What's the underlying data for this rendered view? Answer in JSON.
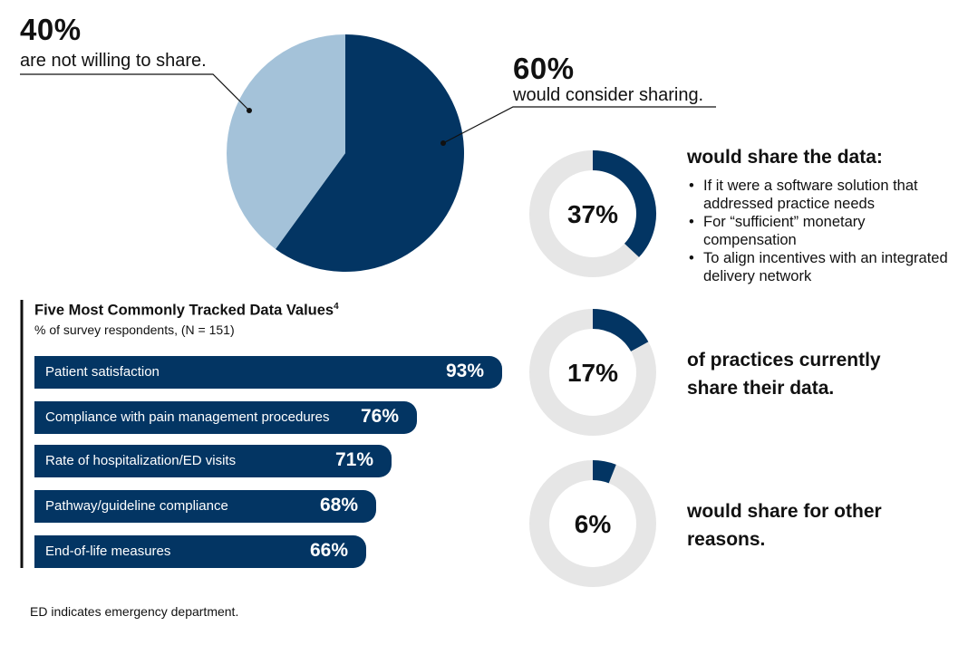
{
  "colors": {
    "navy": "#033563",
    "light_blue": "#a4c2d9",
    "ring_gray": "#e6e6e6"
  },
  "pie": {
    "left_pct": "40%",
    "left_caption": "are not willing to share.",
    "right_pct": "60%",
    "right_caption": "would consider sharing."
  },
  "donuts": [
    {
      "label": "37%",
      "heading": "would share the data:",
      "bullets": [
        "If it were a software solution that addressed practice needs",
        "For “sufficient” monetary compensation",
        "To align incentives with an integrated delivery network"
      ]
    },
    {
      "label": "17%",
      "heading_line1": "of practices currently",
      "heading_line2": "share their data."
    },
    {
      "label": "6%",
      "heading_line1": "would share for other",
      "heading_line2": "reasons."
    }
  ],
  "bar_section": {
    "title": "Five Most Commonly Tracked Data Values",
    "title_superscript": "4",
    "subtitle": "% of survey respondents, (N = 151)"
  },
  "footnote": "ED indicates emergency department.",
  "chart_data": [
    {
      "type": "pie",
      "categories": [
        "are not willing to share.",
        "would consider sharing."
      ],
      "values": [
        40,
        60
      ],
      "labels": [
        "40%",
        "60%"
      ]
    },
    {
      "type": "pie",
      "categories": [
        "would share the data:"
      ],
      "values": [
        37
      ],
      "labels": [
        "37%"
      ],
      "style": "donut"
    },
    {
      "type": "pie",
      "categories": [
        "of practices currently share their data."
      ],
      "values": [
        17
      ],
      "labels": [
        "17%"
      ],
      "style": "donut"
    },
    {
      "type": "pie",
      "categories": [
        "would share for other reasons."
      ],
      "values": [
        6
      ],
      "labels": [
        "6%"
      ],
      "style": "donut"
    },
    {
      "type": "bar",
      "orientation": "horizontal",
      "title": "Five Most Commonly Tracked Data Values",
      "subtitle": "% of survey respondents, (N = 151)",
      "categories": [
        "Patient satisfaction",
        "Compliance with pain management procedures",
        "Rate of hospitalization/ED visits",
        "Pathway/guideline compliance",
        "End-of-life measures"
      ],
      "values": [
        93,
        76,
        71,
        68,
        66
      ],
      "labels": [
        "93%",
        "76%",
        "71%",
        "68%",
        "66%"
      ]
    }
  ]
}
